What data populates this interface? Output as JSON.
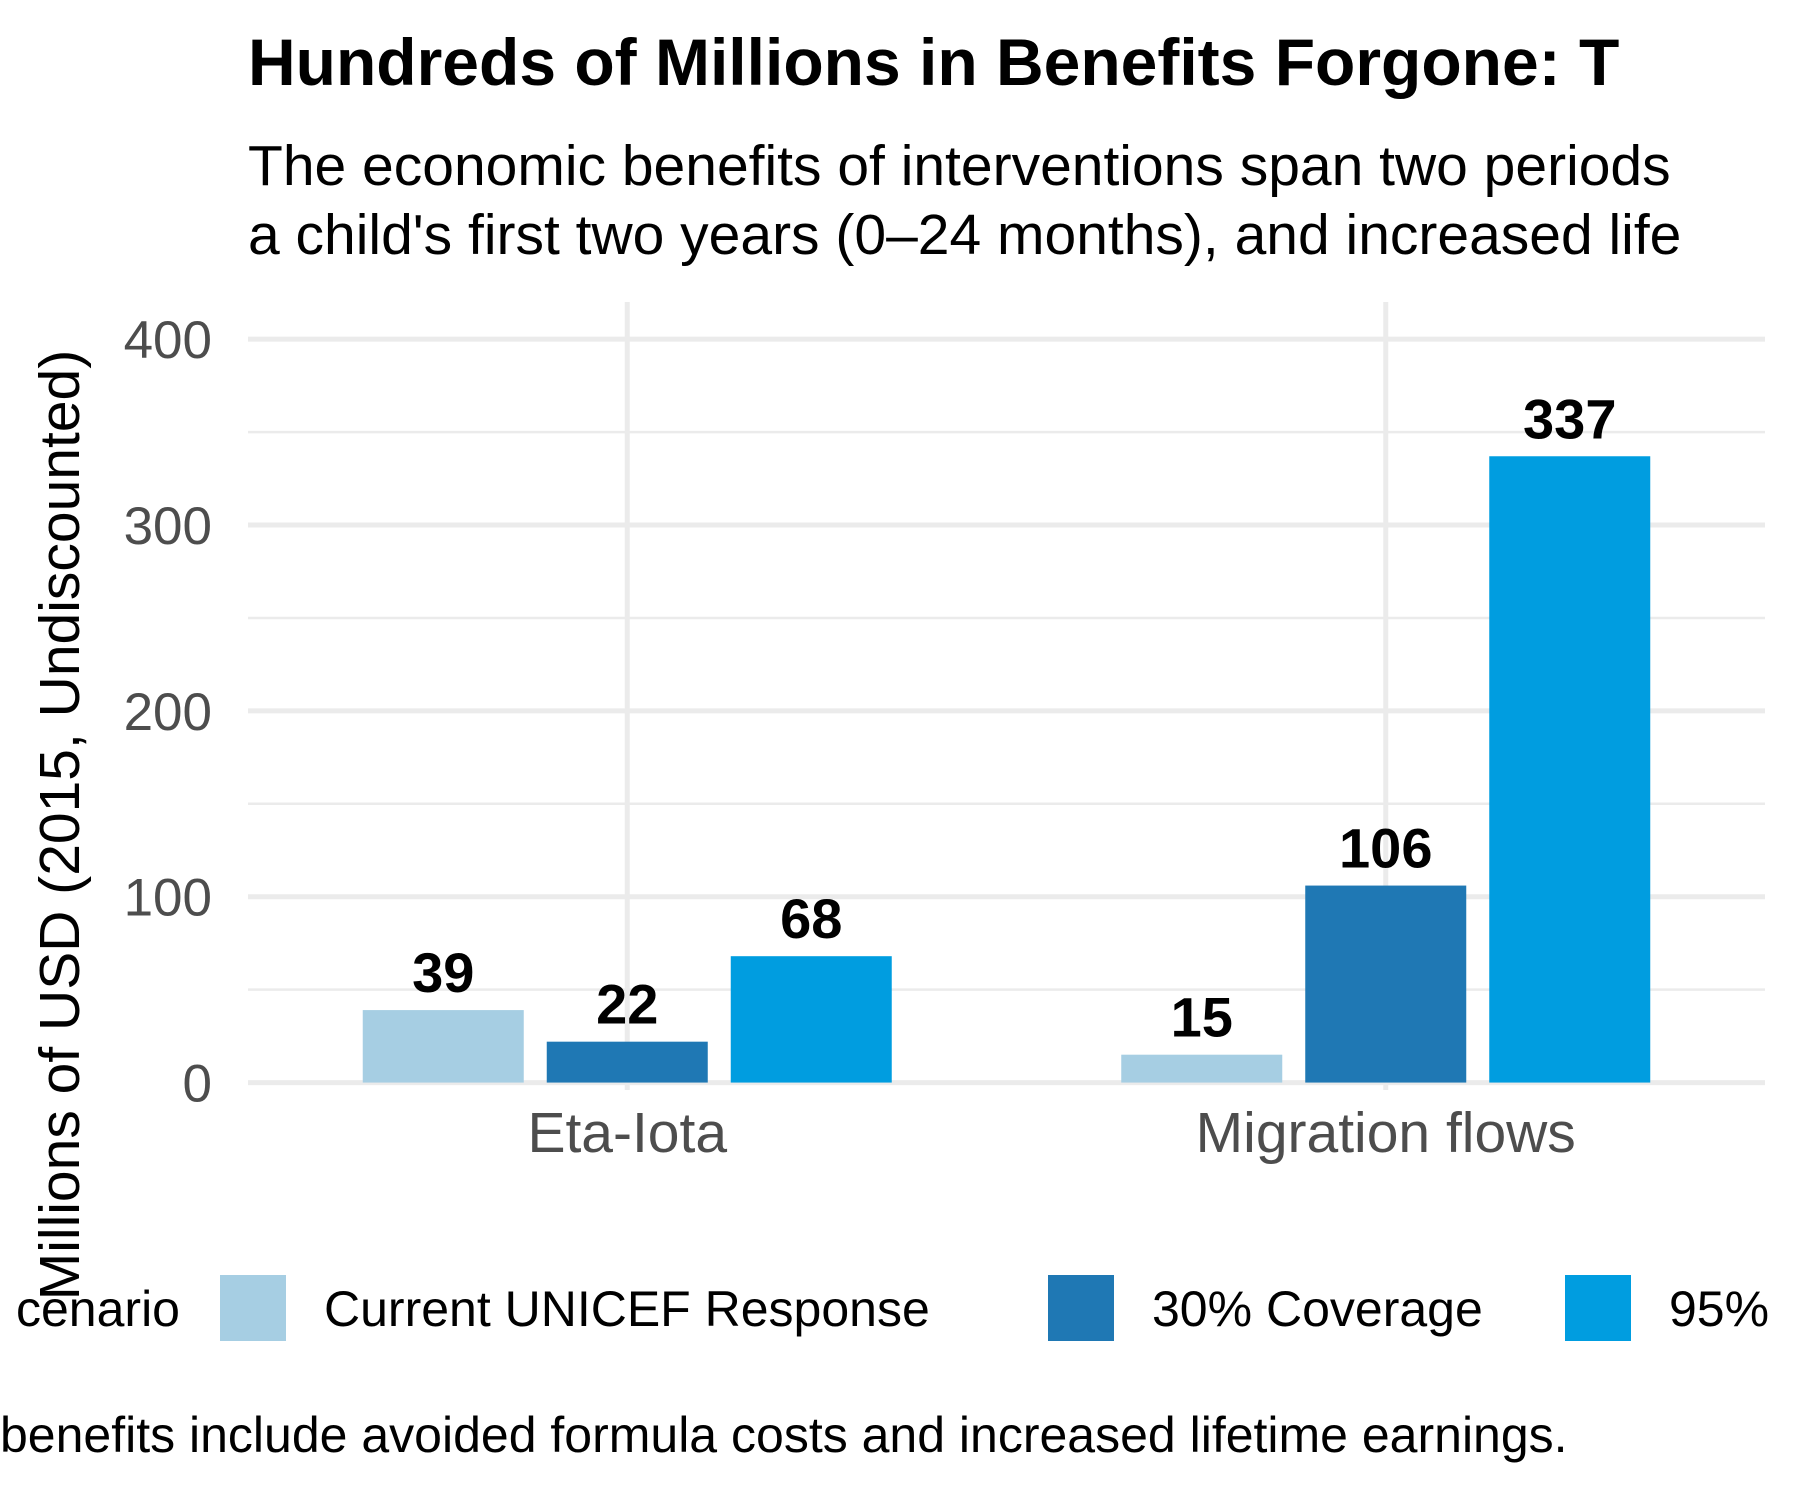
{
  "chart_data": {
    "type": "bar",
    "title": "Hundreds of Millions in Benefits Forgone: T",
    "subtitle_lines": [
      "The economic benefits of interventions span two periods",
      "a child's first two years (0–24 months), and increased life"
    ],
    "ylabel": "Millions of USD (2015, Undiscounted)",
    "xlabel": "",
    "categories": [
      "Eta-Iota",
      "Migration flows"
    ],
    "series": [
      {
        "name": "Current UNICEF Response",
        "color": "#a6cee3",
        "values": [
          39,
          15
        ]
      },
      {
        "name": "30% Coverage",
        "color": "#1f78b4",
        "values": [
          22,
          106
        ]
      },
      {
        "name": "95%",
        "color": "#009de0",
        "values": [
          68,
          337
        ]
      }
    ],
    "ylim": [
      -4,
      420
    ],
    "yticks": [
      0,
      100,
      200,
      300,
      400
    ],
    "grid": true,
    "legend": {
      "title": "cenario",
      "placement": "bottom"
    },
    "caption": "benefits include avoided formula costs and increased lifetime earnings."
  }
}
